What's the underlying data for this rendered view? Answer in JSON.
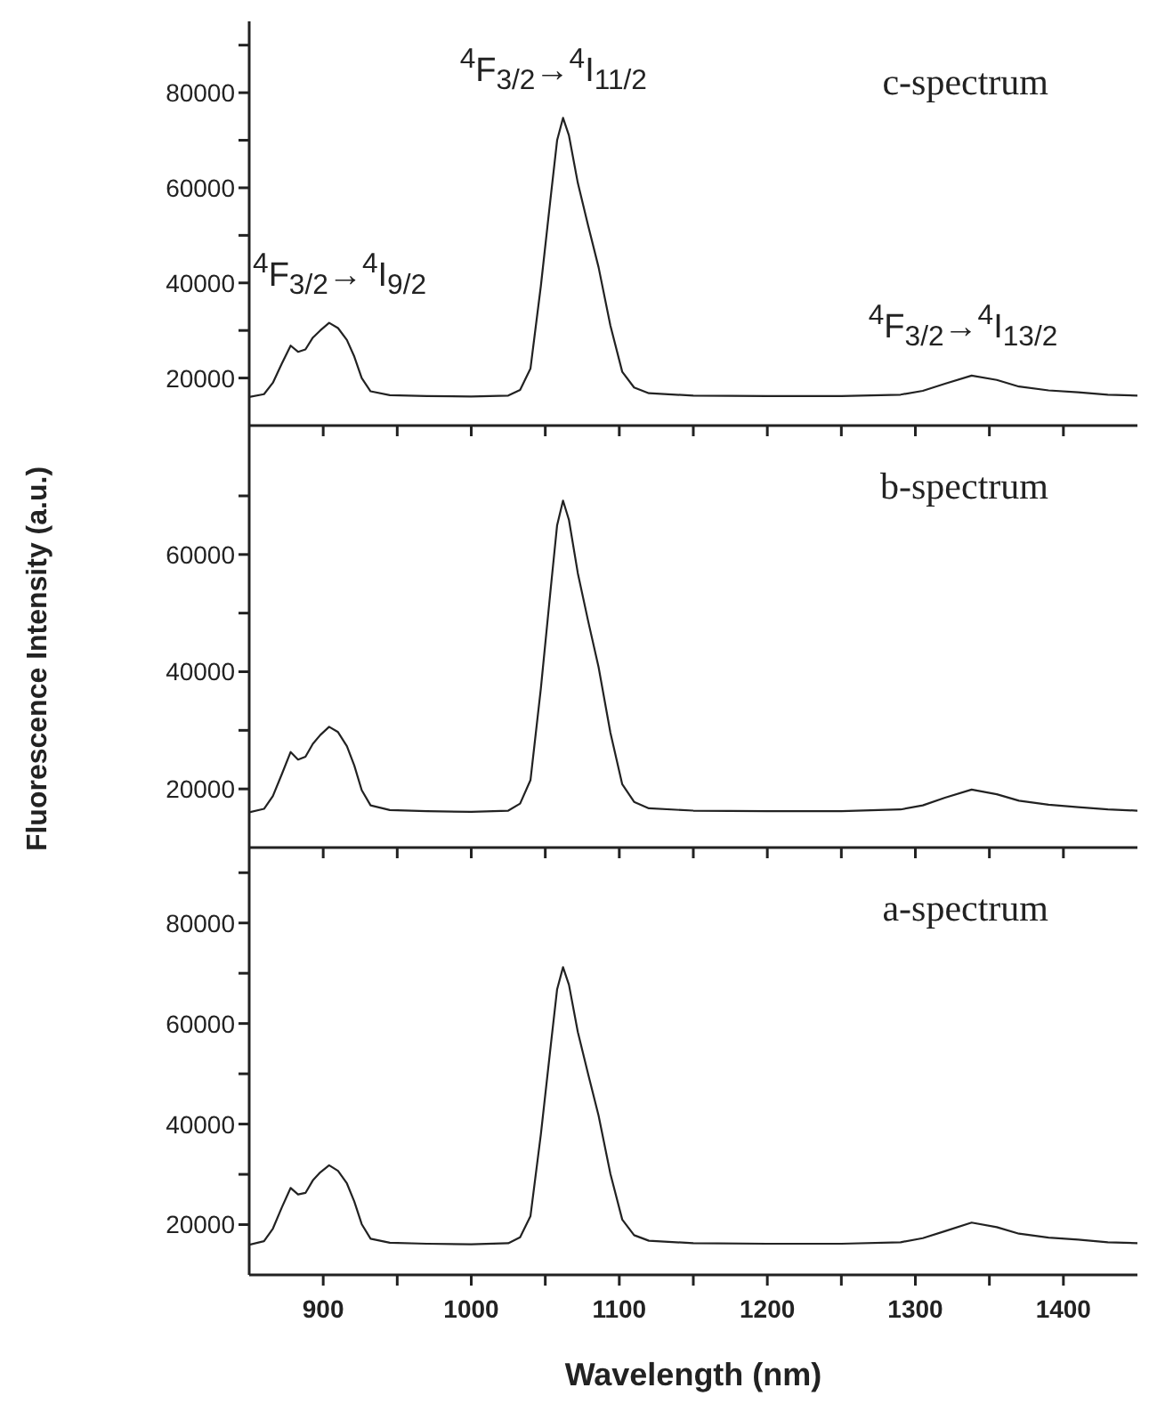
{
  "chart_data": [
    {
      "type": "line",
      "x": [
        850,
        860,
        866,
        872,
        878,
        883,
        888,
        893,
        898,
        904,
        910,
        916,
        921,
        926,
        932,
        945,
        970,
        1000,
        1025,
        1033,
        1040,
        1047,
        1054,
        1058,
        1062,
        1066,
        1072,
        1079,
        1086,
        1094,
        1102,
        1110,
        1120,
        1150,
        1200,
        1250,
        1290,
        1305,
        1320,
        1338,
        1355,
        1370,
        1390,
        1410,
        1430,
        1450
      ],
      "series": [
        {
          "name": "c-spectrum",
          "color": "#222222",
          "values": [
            16000,
            16600,
            19000,
            23000,
            26800,
            25500,
            26000,
            28500,
            30000,
            31600,
            30500,
            28000,
            24500,
            20000,
            17200,
            16400,
            16200,
            16100,
            16300,
            17500,
            22000,
            39300,
            59000,
            70000,
            74700,
            71000,
            61000,
            52000,
            43300,
            31000,
            21300,
            18000,
            16800,
            16300,
            16200,
            16200,
            16500,
            17300,
            18800,
            20500,
            19600,
            18200,
            17400,
            17000,
            16500,
            16300
          ]
        }
      ],
      "xlim": [
        850,
        1450
      ],
      "xticks": [
        900,
        {
          "value": 950,
          "label": null
        },
        1000,
        {
          "value": 1050,
          "label": null
        },
        1100,
        {
          "value": 1150,
          "label": null
        },
        1200,
        {
          "value": 1250,
          "label": null
        },
        1300,
        {
          "value": 1350,
          "label": null
        },
        1400
      ],
      "ylim": [
        10000,
        95000
      ],
      "yticks": [
        20000,
        {
          "value": 30000,
          "label": null
        },
        40000,
        {
          "value": 50000,
          "label": null
        },
        60000,
        {
          "value": 70000,
          "label": null
        },
        80000,
        {
          "value": 90000,
          "label": null
        }
      ],
      "tick_labels": "y",
      "annotations": [
        {
          "text": "$^{4}$F$_{3/2}$→$^{4}$I$_{11/2}$",
          "x": 1062,
          "y": 74700
        },
        {
          "text": "$^{4}$F$_{3/2}$→$^{4}$I$_{9/2}$",
          "x": 904,
          "y": 31600
        },
        {
          "text": "$^{4}$F$_{3/2}$→$^{4}$I$_{13/2}$",
          "x": 1338,
          "y": 20500
        }
      ]
    },
    {
      "type": "line",
      "x": [
        850,
        860,
        866,
        872,
        878,
        883,
        888,
        893,
        898,
        904,
        910,
        916,
        921,
        926,
        932,
        945,
        970,
        1000,
        1025,
        1033,
        1040,
        1047,
        1054,
        1058,
        1062,
        1066,
        1072,
        1079,
        1086,
        1094,
        1102,
        1110,
        1120,
        1150,
        1200,
        1250,
        1290,
        1305,
        1320,
        1338,
        1355,
        1370,
        1390,
        1410,
        1430,
        1450
      ],
      "series": [
        {
          "name": "b-spectrum",
          "color": "#222222",
          "values": [
            16000,
            16600,
            18800,
            22500,
            26300,
            25000,
            25500,
            27700,
            29200,
            30600,
            29700,
            27300,
            24000,
            19800,
            17200,
            16400,
            16200,
            16100,
            16300,
            17500,
            21500,
            37100,
            55000,
            65000,
            69200,
            65900,
            56800,
            48600,
            40800,
            29600,
            20800,
            17800,
            16700,
            16300,
            16200,
            16200,
            16500,
            17200,
            18500,
            19900,
            19100,
            18000,
            17300,
            16900,
            16500,
            16300
          ]
        }
      ],
      "xlim": [
        850,
        1450
      ],
      "xticks": [
        900,
        {
          "value": 950,
          "label": null
        },
        1000,
        {
          "value": 1050,
          "label": null
        },
        1100,
        {
          "value": 1150,
          "label": null
        },
        1200,
        {
          "value": 1250,
          "label": null
        },
        1300,
        {
          "value": 1350,
          "label": null
        },
        1400
      ],
      "ylim": [
        10000,
        82000
      ],
      "yticks": [
        20000,
        {
          "value": 30000,
          "label": null
        },
        40000,
        {
          "value": 50000,
          "label": null
        },
        60000,
        {
          "value": 70000,
          "label": null
        }
      ],
      "tick_labels": "y",
      "ylabel": "Fluorescence Intensity (a.u.)"
    },
    {
      "type": "line",
      "x": [
        850,
        860,
        866,
        872,
        878,
        883,
        888,
        893,
        898,
        904,
        910,
        916,
        921,
        926,
        932,
        945,
        970,
        1000,
        1025,
        1033,
        1040,
        1047,
        1054,
        1058,
        1062,
        1066,
        1072,
        1079,
        1086,
        1094,
        1102,
        1110,
        1120,
        1150,
        1200,
        1250,
        1290,
        1305,
        1320,
        1338,
        1355,
        1370,
        1390,
        1410,
        1430,
        1450
      ],
      "series": [
        {
          "name": "a-spectrum",
          "color": "#222222",
          "values": [
            16000,
            16700,
            19200,
            23400,
            27300,
            26000,
            26300,
            28800,
            30400,
            31800,
            30700,
            28200,
            24600,
            20100,
            17200,
            16400,
            16200,
            16100,
            16300,
            17500,
            21700,
            37900,
            56400,
            66800,
            71200,
            67700,
            58300,
            49900,
            41700,
            30100,
            21000,
            17900,
            16800,
            16300,
            16200,
            16200,
            16500,
            17300,
            18700,
            20400,
            19500,
            18200,
            17400,
            17000,
            16500,
            16300
          ]
        }
      ],
      "xlim": [
        850,
        1450
      ],
      "xticks": [
        900,
        {
          "value": 950,
          "label": null
        },
        1000,
        {
          "value": 1050,
          "label": null
        },
        1100,
        {
          "value": 1150,
          "label": null
        },
        1200,
        {
          "value": 1250,
          "label": null
        },
        1300,
        {
          "value": 1350,
          "label": null
        },
        1400
      ],
      "ylim": [
        10000,
        95000
      ],
      "yticks": [
        20000,
        {
          "value": 30000,
          "label": null
        },
        40000,
        {
          "value": 50000,
          "label": null
        },
        60000,
        {
          "value": 70000,
          "label": null
        },
        80000,
        {
          "value": 90000,
          "label": null
        }
      ],
      "xlabel": "Wavelength (nm)"
    }
  ]
}
